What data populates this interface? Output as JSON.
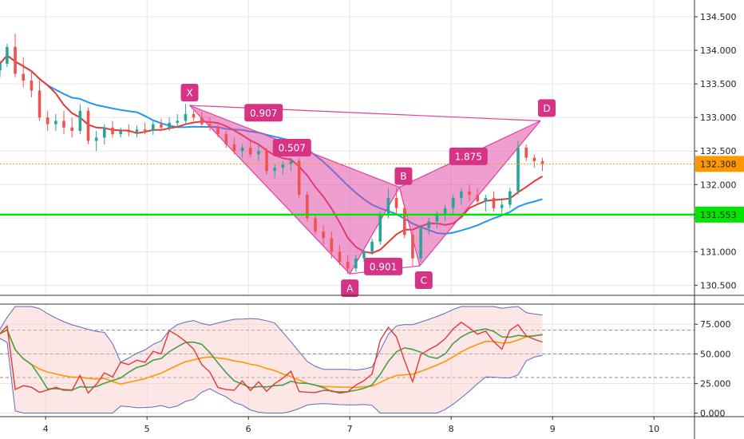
{
  "chart_data": {
    "type": "candlestick",
    "panels": [
      {
        "name": "price",
        "y_ticks": [
          "134.500",
          "134.000",
          "133.500",
          "133.000",
          "132.500",
          "132.000",
          "131.500",
          "131.000",
          "130.500"
        ],
        "ylim": [
          130.35,
          134.75
        ],
        "badges": [
          {
            "label": "132.308",
            "value": 132.308,
            "color": "#ff9800"
          },
          {
            "label": "131.553",
            "value": 131.553,
            "color": "#00e600"
          }
        ],
        "support_line": 131.553,
        "last_price_line": 132.308,
        "harmonic_pattern": {
          "points": [
            {
              "name": "X",
              "t": 5.42,
              "price": 133.18
            },
            {
              "name": "A",
              "t": 7.0,
              "price": 130.67
            },
            {
              "name": "B",
              "t": 7.49,
              "price": 131.96
            },
            {
              "name": "C",
              "t": 7.69,
              "price": 130.79
            },
            {
              "name": "D",
              "t": 8.88,
              "price": 132.95
            }
          ],
          "ratios": [
            {
              "label": "0.507",
              "t": 6.43,
              "price": 132.55
            },
            {
              "label": "0.901",
              "t": 7.33,
              "price": 130.78
            },
            {
              "label": "1.875",
              "t": 8.17,
              "price": 132.42
            },
            {
              "label": "0.907",
              "t": 6.15,
              "price": 133.07
            }
          ]
        },
        "candles": [
          [
            3.55,
            133.7,
            133.85,
            133.6,
            133.8
          ],
          [
            3.62,
            133.8,
            134.1,
            133.75,
            134.05
          ],
          [
            3.7,
            134.05,
            134.25,
            133.6,
            133.65
          ],
          [
            3.78,
            133.65,
            133.9,
            133.45,
            133.55
          ],
          [
            3.86,
            133.55,
            133.7,
            133.3,
            133.4
          ],
          [
            3.94,
            133.4,
            133.55,
            132.95,
            133.0
          ],
          [
            4.02,
            133.0,
            133.1,
            132.8,
            132.9
          ],
          [
            4.1,
            132.9,
            133.05,
            132.8,
            132.95
          ],
          [
            4.18,
            132.95,
            133.1,
            132.75,
            132.85
          ],
          [
            4.26,
            132.85,
            133.0,
            132.7,
            132.8
          ],
          [
            4.34,
            132.8,
            133.2,
            132.75,
            133.1
          ],
          [
            4.42,
            133.1,
            133.15,
            132.6,
            132.65
          ],
          [
            4.5,
            132.65,
            132.8,
            132.5,
            132.7
          ],
          [
            4.58,
            132.7,
            132.9,
            132.6,
            132.85
          ],
          [
            4.66,
            132.85,
            132.95,
            132.7,
            132.75
          ],
          [
            4.74,
            132.75,
            132.85,
            132.7,
            132.8
          ],
          [
            4.82,
            132.8,
            132.9,
            132.72,
            132.78
          ],
          [
            4.9,
            132.78,
            132.88,
            132.7,
            132.82
          ],
          [
            4.98,
            132.82,
            132.92,
            132.75,
            132.8
          ],
          [
            5.06,
            132.8,
            132.95,
            132.74,
            132.9
          ],
          [
            5.14,
            132.9,
            132.98,
            132.8,
            132.85
          ],
          [
            5.22,
            132.85,
            133.0,
            132.8,
            132.92
          ],
          [
            5.3,
            132.92,
            133.05,
            132.85,
            132.95
          ],
          [
            5.38,
            132.95,
            133.2,
            132.9,
            133.05
          ],
          [
            5.46,
            133.05,
            133.1,
            132.95,
            133.0
          ],
          [
            5.54,
            133.0,
            133.08,
            132.85,
            132.9
          ],
          [
            5.62,
            132.9,
            133.0,
            132.8,
            132.85
          ],
          [
            5.7,
            132.85,
            132.9,
            132.7,
            132.75
          ],
          [
            5.78,
            132.75,
            132.8,
            132.55,
            132.6
          ],
          [
            5.86,
            132.6,
            132.7,
            132.45,
            132.5
          ],
          [
            5.94,
            132.5,
            132.6,
            132.4,
            132.55
          ],
          [
            6.02,
            132.55,
            132.65,
            132.4,
            132.45
          ],
          [
            6.1,
            132.45,
            132.6,
            132.35,
            132.5
          ],
          [
            6.18,
            132.5,
            132.55,
            132.15,
            132.2
          ],
          [
            6.26,
            132.2,
            132.3,
            132.1,
            132.25
          ],
          [
            6.34,
            132.25,
            132.35,
            132.15,
            132.3
          ],
          [
            6.42,
            132.3,
            132.4,
            132.2,
            132.35
          ],
          [
            6.5,
            132.35,
            132.4,
            131.8,
            131.85
          ],
          [
            6.58,
            131.85,
            131.9,
            131.45,
            131.5
          ],
          [
            6.66,
            131.5,
            131.55,
            131.25,
            131.3
          ],
          [
            6.74,
            131.3,
            131.4,
            131.1,
            131.2
          ],
          [
            6.82,
            131.2,
            131.3,
            130.9,
            131.0
          ],
          [
            6.9,
            131.0,
            131.1,
            130.8,
            130.85
          ],
          [
            6.98,
            130.85,
            130.95,
            130.67,
            130.75
          ],
          [
            7.06,
            130.75,
            130.95,
            130.7,
            130.9
          ],
          [
            7.14,
            130.9,
            131.05,
            130.85,
            131.0
          ],
          [
            7.22,
            131.0,
            131.2,
            130.95,
            131.15
          ],
          [
            7.3,
            131.15,
            131.6,
            131.1,
            131.55
          ],
          [
            7.38,
            131.55,
            131.95,
            131.5,
            131.8
          ],
          [
            7.46,
            131.8,
            131.96,
            131.55,
            131.65
          ],
          [
            7.54,
            131.65,
            131.7,
            131.2,
            131.25
          ],
          [
            7.62,
            131.25,
            131.3,
            130.79,
            130.9
          ],
          [
            7.7,
            130.9,
            131.4,
            130.85,
            131.35
          ],
          [
            7.78,
            131.35,
            131.5,
            131.25,
            131.45
          ],
          [
            7.86,
            131.45,
            131.6,
            131.35,
            131.55
          ],
          [
            7.94,
            131.55,
            131.7,
            131.45,
            131.65
          ],
          [
            8.02,
            131.65,
            131.85,
            131.55,
            131.8
          ],
          [
            8.1,
            131.8,
            131.95,
            131.7,
            131.9
          ],
          [
            8.18,
            131.9,
            132.0,
            131.75,
            131.85
          ],
          [
            8.26,
            131.85,
            131.95,
            131.7,
            131.75
          ],
          [
            8.34,
            131.75,
            131.85,
            131.6,
            131.8
          ],
          [
            8.42,
            131.8,
            131.9,
            131.6,
            131.65
          ],
          [
            8.5,
            131.65,
            131.8,
            131.55,
            131.7
          ],
          [
            8.58,
            131.7,
            131.95,
            131.65,
            131.9
          ],
          [
            8.66,
            131.9,
            132.65,
            131.85,
            132.55
          ],
          [
            8.74,
            132.55,
            132.6,
            132.35,
            132.4
          ],
          [
            8.82,
            132.4,
            132.45,
            132.25,
            132.35
          ],
          [
            8.9,
            132.35,
            132.4,
            132.2,
            132.31
          ]
        ]
      },
      {
        "name": "oscillator",
        "y_ticks": [
          "75.000",
          "50.000",
          "25.000",
          "0.000"
        ],
        "ylim": [
          -3,
          92
        ],
        "levels": [
          70,
          50,
          30
        ]
      }
    ],
    "x_ticks": [
      "4",
      "5",
      "6",
      "7",
      "8",
      "9",
      "10"
    ],
    "xlim": [
      3.55,
      10.4
    ],
    "colors": {
      "up_candle": "#26a69a",
      "down_candle": "#ef5350",
      "pattern_fill": "#e040a0",
      "pattern_label": "#d63384",
      "ma_fast": "#e53935",
      "ma_slow": "#2196f3",
      "osc_main": "#e53935",
      "osc_signal": "#43a047",
      "osc_mid": "#ff9800",
      "osc_band": "#5c6bc0",
      "support": "#00e600",
      "last_price": "#ff9800"
    }
  }
}
